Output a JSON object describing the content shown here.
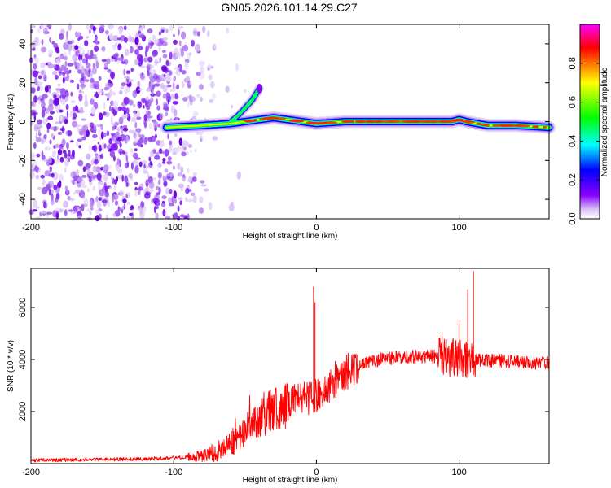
{
  "chart_data": [
    {
      "type": "heatmap",
      "title": "GN05.2026.101.14.29.C27",
      "xlabel": "Height of straight line (km)",
      "ylabel": "Frequency (Hz)",
      "xlim": [
        -200,
        163
      ],
      "ylim": [
        -50,
        50
      ],
      "xticks": [
        -200,
        -100,
        0,
        100
      ],
      "xtick_labels": [
        "-200",
        "-100",
        "0",
        "100"
      ],
      "yticks": [
        -40,
        -20,
        0,
        20,
        40
      ],
      "ytick_labels": [
        "-40",
        "-20",
        "0",
        "20",
        "40"
      ],
      "colorbar": {
        "label": "Normalized spectral amplitude",
        "range": [
          0,
          1
        ],
        "ticks": [
          0,
          0.2,
          0.4,
          0.6,
          0.8
        ],
        "tick_labels": [
          "0.0",
          "0.2",
          "0.4",
          "0.6",
          "0.8"
        ],
        "colors": [
          "#ffffff",
          "#c8a0f0",
          "#8b00ff",
          "#0000ff",
          "#00ffff",
          "#00ff00",
          "#ffff00",
          "#ff0000",
          "#ff00ff"
        ]
      },
      "features": {
        "noise_region_x": [
          -200,
          -75
        ],
        "main_ridge": {
          "x": [
            -105,
            -80,
            -60,
            -50,
            -40,
            -30,
            -20,
            -10,
            0,
            20,
            40,
            60,
            80,
            95,
            100,
            105,
            120,
            140,
            163
          ],
          "freq": [
            -3,
            -2,
            -1,
            0,
            1,
            2,
            1,
            0,
            -1,
            0,
            0,
            0,
            0,
            0,
            1,
            0,
            -2,
            -2,
            -3
          ]
        },
        "upward_branch": {
          "x": [
            -60,
            -55,
            -50,
            -45,
            -40
          ],
          "freq": [
            0,
            3,
            7,
            11,
            17
          ]
        }
      }
    },
    {
      "type": "line",
      "title": "",
      "xlabel": "Height of straight line (km)",
      "ylabel": "SNR (10 * v/v)",
      "xlim": [
        -200,
        163
      ],
      "ylim": [
        0,
        7500
      ],
      "xticks": [
        -200,
        -100,
        0,
        100
      ],
      "xtick_labels": [
        "-200",
        "-100",
        "0",
        "100"
      ],
      "yticks": [
        2000,
        4000,
        6000
      ],
      "ytick_labels": [
        "2000",
        "4000",
        "6000"
      ],
      "series": [
        {
          "name": "SNR",
          "color": "#ff0000",
          "x": [
            -200,
            -180,
            -160,
            -140,
            -120,
            -100,
            -90,
            -80,
            -70,
            -60,
            -50,
            -40,
            -30,
            -20,
            -10,
            -5,
            0,
            10,
            20,
            30,
            40,
            50,
            60,
            70,
            80,
            90,
            100,
            110,
            120,
            130,
            140,
            150,
            163
          ],
          "y": [
            120,
            140,
            150,
            160,
            180,
            220,
            260,
            320,
            450,
            750,
            1200,
            1700,
            2100,
            2300,
            2600,
            2500,
            2600,
            3000,
            3400,
            3750,
            3950,
            4050,
            4100,
            4100,
            4120,
            4080,
            4050,
            4000,
            3950,
            3950,
            3900,
            3880,
            3850
          ]
        }
      ],
      "spikes": [
        {
          "x": -2,
          "y": 6800
        },
        {
          "x": -1,
          "y": 6200
        },
        {
          "x": 88,
          "y": 5000
        },
        {
          "x": 100,
          "y": 5500
        },
        {
          "x": 106,
          "y": 6700
        },
        {
          "x": 110,
          "y": 7400
        }
      ]
    }
  ]
}
